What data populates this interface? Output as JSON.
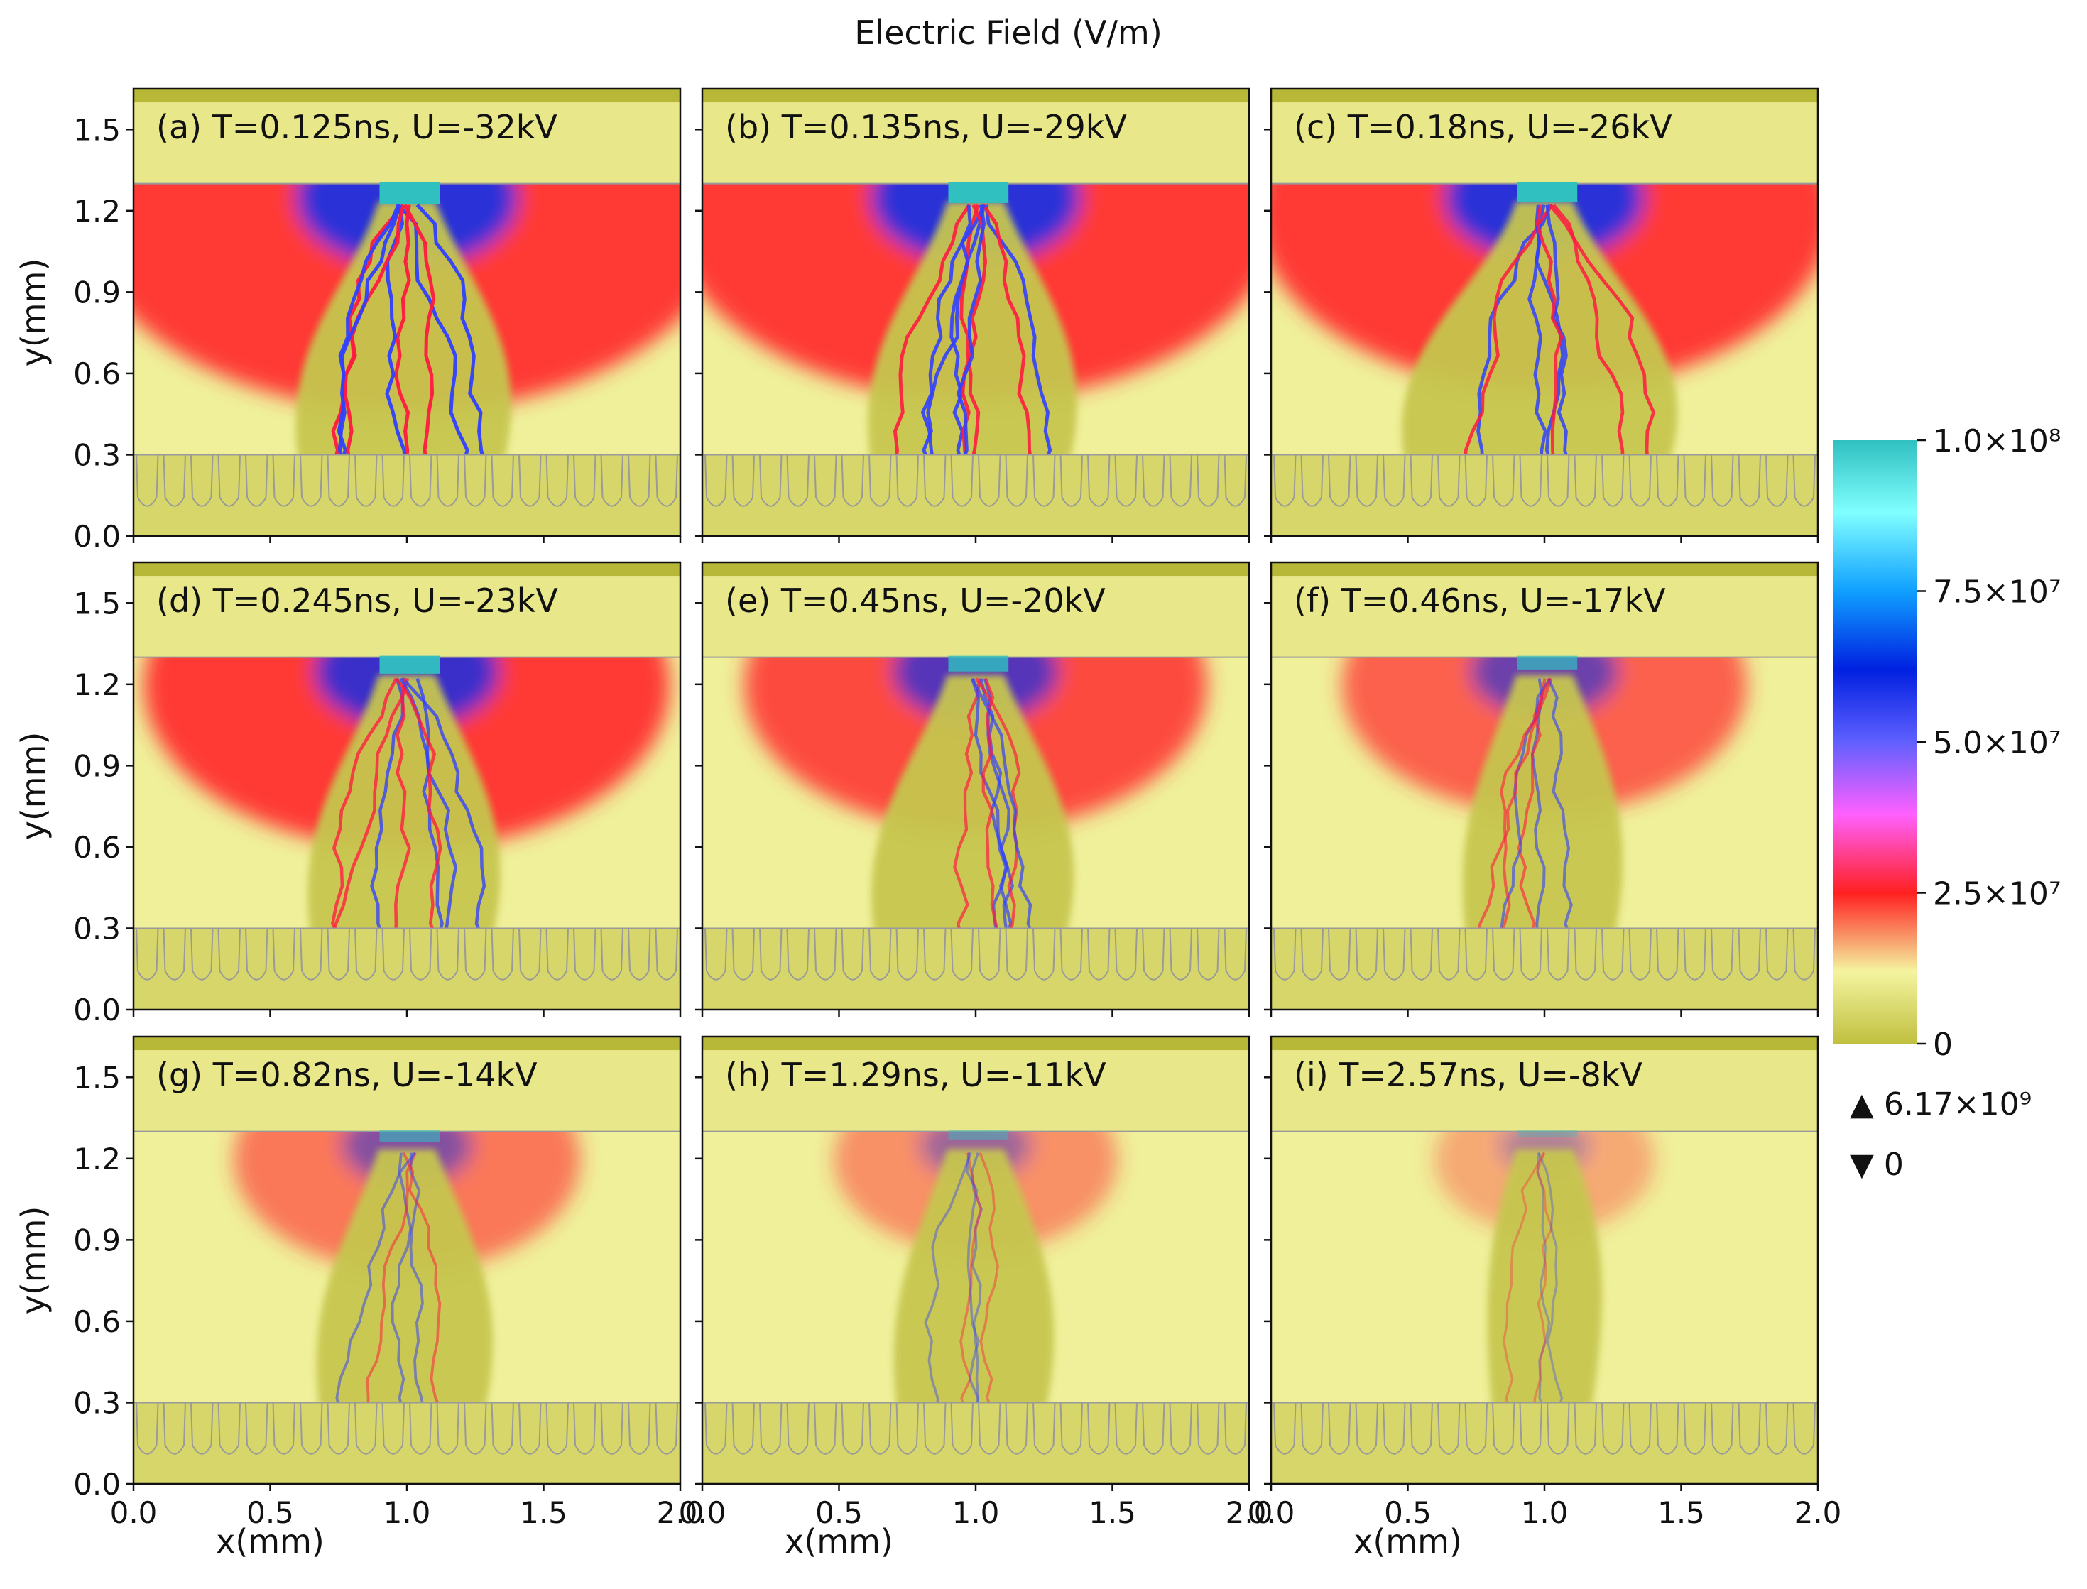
{
  "figure": {
    "title": "Electric Field (V/m)",
    "xlabel": "x(mm)",
    "ylabel": "y(mm)",
    "xticks": [
      "0.0",
      "0.5",
      "1.0",
      "1.5",
      "2.0"
    ],
    "yticks": [
      "0.0",
      "0.3",
      "0.6",
      "0.9",
      "1.2",
      "1.5"
    ],
    "colorbar": {
      "ticks": [
        "1.0×10⁸",
        "7.5×10⁷",
        "5.0×10⁷",
        "2.5×10⁷",
        "0"
      ],
      "max_label": "▲ 6.17×10⁹",
      "min_label": "▼ 0",
      "colors": [
        "#c0c040",
        "#f4f4a0",
        "#ff2020",
        "#ff60ff",
        "#6060ff",
        "#0020e0",
        "#10a0ff",
        "#80ffff",
        "#30c0c0"
      ]
    }
  },
  "chart_data": {
    "type": "heatmap",
    "title": "Electric Field (V/m)",
    "xlabel": "x(mm)",
    "ylabel": "y(mm)",
    "xlim": [
      0.0,
      2.0
    ],
    "ylim": [
      0.0,
      1.65
    ],
    "colorbar_range": [
      0,
      100000000
    ],
    "global_max": 6170000000,
    "global_min": 0,
    "panels": [
      {
        "label": "(a) T=0.125ns, U=-32kV",
        "time_ns": 0.125,
        "voltage_kV": -32,
        "intensity": 1.0,
        "reach": 0.3,
        "spread": 0.62
      },
      {
        "label": "(b) T=0.135ns, U=-29kV",
        "time_ns": 0.135,
        "voltage_kV": -29,
        "intensity": 0.92,
        "reach": 0.3,
        "spread": 0.6
      },
      {
        "label": "(c) T=0.18ns, U=-26kV",
        "time_ns": 0.18,
        "voltage_kV": -26,
        "intensity": 0.85,
        "reach": 0.3,
        "spread": 0.8
      },
      {
        "label": "(d) T=0.245ns, U=-23kV",
        "time_ns": 0.245,
        "voltage_kV": -23,
        "intensity": 0.75,
        "reach": 0.3,
        "spread": 0.55
      },
      {
        "label": "(e) T=0.45ns, U=-20kV",
        "time_ns": 0.45,
        "voltage_kV": -20,
        "intensity": 0.62,
        "reach": 0.3,
        "spread": 0.58
      },
      {
        "label": "(f) T=0.46ns, U=-17kV",
        "time_ns": 0.46,
        "voltage_kV": -17,
        "intensity": 0.5,
        "reach": 0.3,
        "spread": 0.45
      },
      {
        "label": "(g) T=0.82ns, U=-14kV",
        "time_ns": 0.82,
        "voltage_kV": -14,
        "intensity": 0.38,
        "reach": 0.3,
        "spread": 0.5
      },
      {
        "label": "(h) T=1.29ns, U=-11kV",
        "time_ns": 1.29,
        "voltage_kV": -11,
        "intensity": 0.25,
        "reach": 0.3,
        "spread": 0.45
      },
      {
        "label": "(i) T=2.57ns, U=-8kV",
        "time_ns": 2.57,
        "voltage_kV": -8,
        "intensity": 0.12,
        "reach": 0.3,
        "spread": 0.3
      }
    ]
  }
}
